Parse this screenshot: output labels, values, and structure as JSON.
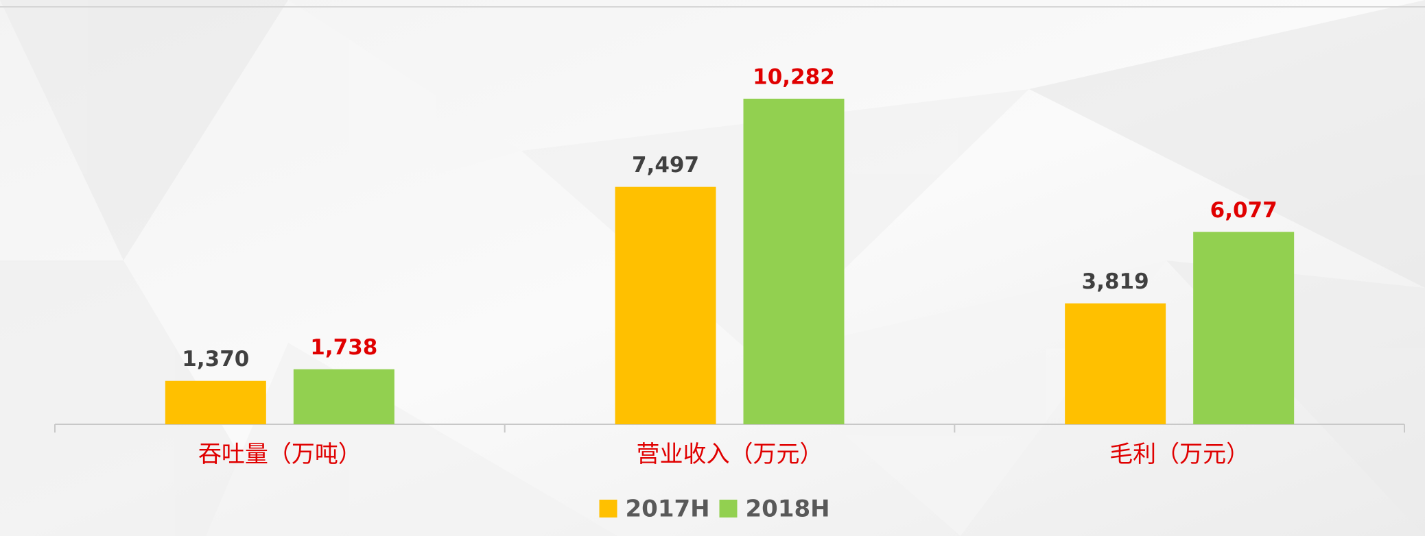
{
  "chart_data": {
    "type": "bar",
    "categories": [
      "吞吐量（万吨）",
      "营业收入（万元）",
      "毛利（万元）"
    ],
    "series": [
      {
        "name": "2017H",
        "color": "#FFC000",
        "label_color": "#404040",
        "values": [
          1370,
          7497,
          3819
        ],
        "value_labels": [
          "1,370",
          "7,497",
          "3,819"
        ]
      },
      {
        "name": "2018H",
        "color": "#92D050",
        "label_color": "#E00000",
        "values": [
          1738,
          10282,
          6077
        ],
        "value_labels": [
          "1,738",
          "10,282",
          "6,077"
        ]
      }
    ],
    "category_label_color": "#E00000",
    "legend": "bottom"
  }
}
